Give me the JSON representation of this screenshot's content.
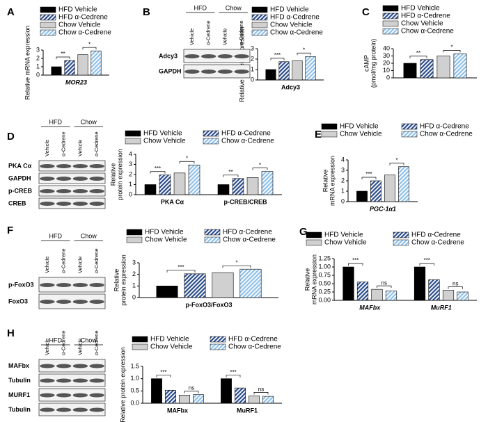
{
  "chart_data": [
    {
      "type": "bar",
      "label": "A",
      "ylabel": [
        "Relative mRNA expression"
      ],
      "categories": [
        "MOR23"
      ],
      "italic_categories": true,
      "ylim": [
        0,
        3
      ],
      "yticks": [
        0,
        1,
        2,
        3
      ],
      "series": [
        {
          "name": "HFD Vehicle",
          "color": "#000000",
          "hatch": false,
          "values": [
            1
          ]
        },
        {
          "name": "HFD α-Cedrene",
          "color": "#2b4c8c",
          "hatch": true,
          "values": [
            1.75
          ]
        },
        {
          "name": "Chow Vehicle",
          "color": "#d0d0d0",
          "hatch": false,
          "values": [
            2.45
          ]
        },
        {
          "name": "Chow α-Cedrene",
          "color": "#8fc0ea",
          "hatch": true,
          "values": [
            2.9
          ]
        }
      ],
      "significance": [
        [
          "**",
          "*"
        ]
      ]
    },
    {
      "type": "bar",
      "label": "B",
      "blot": {
        "groups": [
          "HFD",
          "Chow"
        ],
        "lanes": [
          "Vehicle",
          "α-Cedrene",
          "Vehicle",
          "α-Cedrene"
        ],
        "rows": [
          "Adcy3",
          "GAPDH"
        ]
      },
      "ylabel": [
        "Relative protein expression"
      ],
      "categories": [
        "Adcy3"
      ],
      "italic_categories": false,
      "ylim": [
        0,
        3
      ],
      "yticks": [
        0,
        1,
        2,
        3
      ],
      "series": [
        {
          "name": "HFD Vehicle",
          "color": "#000000",
          "hatch": false,
          "values": [
            1
          ]
        },
        {
          "name": "HFD α-Cedrene",
          "color": "#2b4c8c",
          "hatch": true,
          "values": [
            1.75
          ]
        },
        {
          "name": "Chow Vehicle",
          "color": "#d0d0d0",
          "hatch": false,
          "values": [
            1.85
          ]
        },
        {
          "name": "Chow α-Cedrene",
          "color": "#8fc0ea",
          "hatch": true,
          "values": [
            2.25
          ]
        }
      ],
      "significance": [
        [
          "***",
          "*"
        ]
      ]
    },
    {
      "type": "bar",
      "label": "C",
      "ylabel": [
        "cAMP",
        "(pmol/mg protein)"
      ],
      "categories": [
        null
      ],
      "italic_categories": false,
      "ylim": [
        0,
        40
      ],
      "yticks": [
        0,
        10,
        20,
        30,
        40
      ],
      "series": [
        {
          "name": "HFD Vehicle",
          "color": "#000000",
          "hatch": false,
          "values": [
            20
          ]
        },
        {
          "name": "HFD α-Cedrene",
          "color": "#2b4c8c",
          "hatch": true,
          "values": [
            25
          ]
        },
        {
          "name": "Chow Vehicle",
          "color": "#d0d0d0",
          "hatch": false,
          "values": [
            30
          ]
        },
        {
          "name": "Chow α-Cedrene",
          "color": "#8fc0ea",
          "hatch": true,
          "values": [
            33
          ]
        }
      ],
      "significance": [
        [
          "**",
          "*"
        ]
      ]
    },
    {
      "type": "bar",
      "label": "D",
      "blot": {
        "groups": [
          "HFD",
          "Chow"
        ],
        "lanes": [
          "Vehicle",
          "α-Cedrene",
          "Vehicle",
          "α-Cedrene"
        ],
        "rows": [
          "PKA Cα",
          "GAPDH",
          "p-CREB",
          "CREB"
        ]
      },
      "ylabel": [
        "Relative",
        "protein expression"
      ],
      "categories": [
        "PKA Cα",
        "p-CREB/CREB"
      ],
      "italic_categories": false,
      "ylim": [
        0,
        4
      ],
      "yticks": [
        0,
        1,
        2,
        3,
        4
      ],
      "series": [
        {
          "name": "HFD Vehicle",
          "color": "#000000",
          "hatch": false,
          "values": [
            1,
            1
          ]
        },
        {
          "name": "HFD α-Cedrene",
          "color": "#2b4c8c",
          "hatch": true,
          "values": [
            1.95,
            1.6
          ]
        },
        {
          "name": "Chow Vehicle",
          "color": "#d0d0d0",
          "hatch": false,
          "values": [
            2.15,
            1.7
          ]
        },
        {
          "name": "Chow α-Cedrene",
          "color": "#8fc0ea",
          "hatch": true,
          "values": [
            2.95,
            2.3
          ]
        }
      ],
      "significance": [
        [
          "***",
          "*"
        ],
        [
          "**",
          "*"
        ]
      ]
    },
    {
      "type": "bar",
      "label": "E",
      "ylabel": [
        "Relative",
        "mRNA expression"
      ],
      "categories": [
        "PGC-1α1"
      ],
      "italic_categories": true,
      "ylim": [
        0,
        4
      ],
      "yticks": [
        0,
        1,
        2,
        3,
        4
      ],
      "series": [
        {
          "name": "HFD Vehicle",
          "color": "#000000",
          "hatch": false,
          "values": [
            1
          ]
        },
        {
          "name": "HFD α-Cedrene",
          "color": "#2b4c8c",
          "hatch": true,
          "values": [
            2
          ]
        },
        {
          "name": "Chow Vehicle",
          "color": "#d0d0d0",
          "hatch": false,
          "values": [
            2.55
          ]
        },
        {
          "name": "Chow α-Cedrene",
          "color": "#8fc0ea",
          "hatch": true,
          "values": [
            3.35
          ]
        }
      ],
      "significance": [
        [
          "***",
          "*"
        ]
      ]
    },
    {
      "type": "bar",
      "label": "F",
      "blot": {
        "groups": [
          "HFD",
          "Chow"
        ],
        "lanes": [
          "Vehicle",
          "α-Cedrene",
          "Vehicle",
          "α-Cedrene"
        ],
        "rows": [
          "p-FoxO3",
          "FoxO3"
        ]
      },
      "ylabel": [
        "Relative",
        "protein expression"
      ],
      "categories": [
        "p-FoxO3/FoxO3"
      ],
      "italic_categories": false,
      "ylim": [
        0,
        3
      ],
      "yticks": [
        0,
        1,
        2,
        3
      ],
      "series": [
        {
          "name": "HFD Vehicle",
          "color": "#000000",
          "hatch": false,
          "values": [
            1
          ]
        },
        {
          "name": "HFD α-Cedrene",
          "color": "#2b4c8c",
          "hatch": true,
          "values": [
            2.05
          ]
        },
        {
          "name": "Chow Vehicle",
          "color": "#d0d0d0",
          "hatch": false,
          "values": [
            2.15
          ]
        },
        {
          "name": "Chow α-Cedrene",
          "color": "#8fc0ea",
          "hatch": true,
          "values": [
            2.45
          ]
        }
      ],
      "significance": [
        [
          "***",
          "*"
        ]
      ]
    },
    {
      "type": "bar",
      "label": "G",
      "ylabel": [
        "Relative",
        "mRNA expression"
      ],
      "categories": [
        "MAFbx",
        "MuRF1"
      ],
      "italic_categories": true,
      "ylim": [
        0,
        1.25
      ],
      "yticks": [
        {
          "value": 0,
          "label": "0.00"
        },
        {
          "value": 0.25,
          "label": "0.25"
        },
        {
          "value": 0.5,
          "label": "0.50"
        },
        {
          "value": 0.75,
          "label": "0.75"
        },
        {
          "value": 1,
          "label": "1.00"
        },
        {
          "value": 1.25,
          "label": "1.25"
        }
      ],
      "series": [
        {
          "name": "HFD Vehicle",
          "color": "#000000",
          "hatch": false,
          "values": [
            1,
            1
          ]
        },
        {
          "name": "HFD α-Cedrene",
          "color": "#2b4c8c",
          "hatch": true,
          "values": [
            0.55,
            0.62
          ]
        },
        {
          "name": "Chow Vehicle",
          "color": "#d0d0d0",
          "hatch": false,
          "values": [
            0.33,
            0.3
          ]
        },
        {
          "name": "Chow α-Cedrene",
          "color": "#8fc0ea",
          "hatch": true,
          "values": [
            0.28,
            0.25
          ]
        }
      ],
      "significance": [
        [
          "***",
          "ns"
        ],
        [
          "***",
          "ns"
        ]
      ]
    },
    {
      "type": "bar",
      "label": "H",
      "blot": {
        "groups": [
          "HFD",
          "Chow"
        ],
        "lanes": [
          "Vehicle",
          "α-Cedrene",
          "Vehicle",
          "α-Cedrene"
        ],
        "rows": [
          "MAFbx",
          "Tubulin",
          "MURF1",
          "Tubulin"
        ]
      },
      "ylabel": [
        "Relative protein expression"
      ],
      "categories": [
        "MAFbx",
        "MuRF1"
      ],
      "italic_categories": false,
      "ylim": [
        0,
        1.5
      ],
      "yticks": [
        {
          "value": 0,
          "label": "0.0"
        },
        {
          "value": 0.5,
          "label": "0.5"
        },
        {
          "value": 1,
          "label": "1.0"
        },
        {
          "value": 1.5,
          "label": "1.5"
        }
      ],
      "series": [
        {
          "name": "HFD Vehicle",
          "color": "#000000",
          "hatch": false,
          "values": [
            1,
            1
          ]
        },
        {
          "name": "HFD α-Cedrene",
          "color": "#2b4c8c",
          "hatch": true,
          "values": [
            0.53,
            0.62
          ]
        },
        {
          "name": "Chow Vehicle",
          "color": "#d0d0d0",
          "hatch": false,
          "values": [
            0.33,
            0.3
          ]
        },
        {
          "name": "Chow α-Cedrene",
          "color": "#8fc0ea",
          "hatch": true,
          "values": [
            0.35,
            0.28
          ]
        }
      ],
      "significance": [
        [
          "***",
          "ns"
        ],
        [
          "***",
          "ns"
        ]
      ]
    }
  ]
}
